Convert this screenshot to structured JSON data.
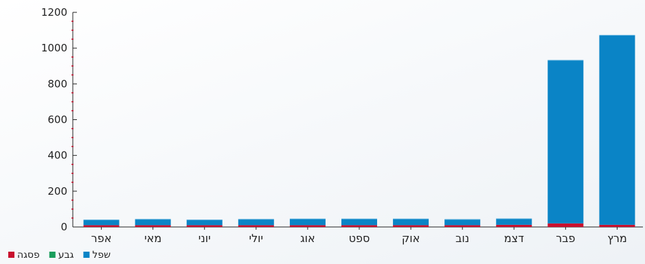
{
  "chart_data": {
    "type": "bar",
    "stacked": true,
    "categories": [
      "אפר",
      "מאי",
      "יוני",
      "יולי",
      "אוג",
      "ספט",
      "אוק",
      "נוב",
      "דצמ",
      "פבר",
      "מרץ"
    ],
    "series": [
      {
        "name": "פסגה",
        "color": "#c8102e",
        "values": [
          10,
          10,
          10,
          10,
          10,
          10,
          10,
          10,
          12,
          20,
          12
        ]
      },
      {
        "name": "גבע",
        "color": "#1a9e5c",
        "values": [
          0,
          0,
          0,
          0,
          0,
          0,
          0,
          0,
          0,
          0,
          0
        ]
      },
      {
        "name": "שפל",
        "color": "#0a84c6",
        "values": [
          30,
          33,
          30,
          33,
          35,
          35,
          35,
          32,
          34,
          912,
          1060
        ]
      }
    ],
    "yticks": [
      0,
      200,
      400,
      600,
      800,
      1000,
      1200
    ],
    "ylim": [
      0,
      1200
    ],
    "legend": {
      "position": "bottom-left",
      "items": [
        {
          "label": "פסגה",
          "color": "#c8102e"
        },
        {
          "label": "גבע",
          "color": "#1a9e5c"
        },
        {
          "label": "שפל",
          "color": "#0a84c6"
        }
      ]
    },
    "title": "",
    "xlabel": "",
    "ylabel": ""
  }
}
